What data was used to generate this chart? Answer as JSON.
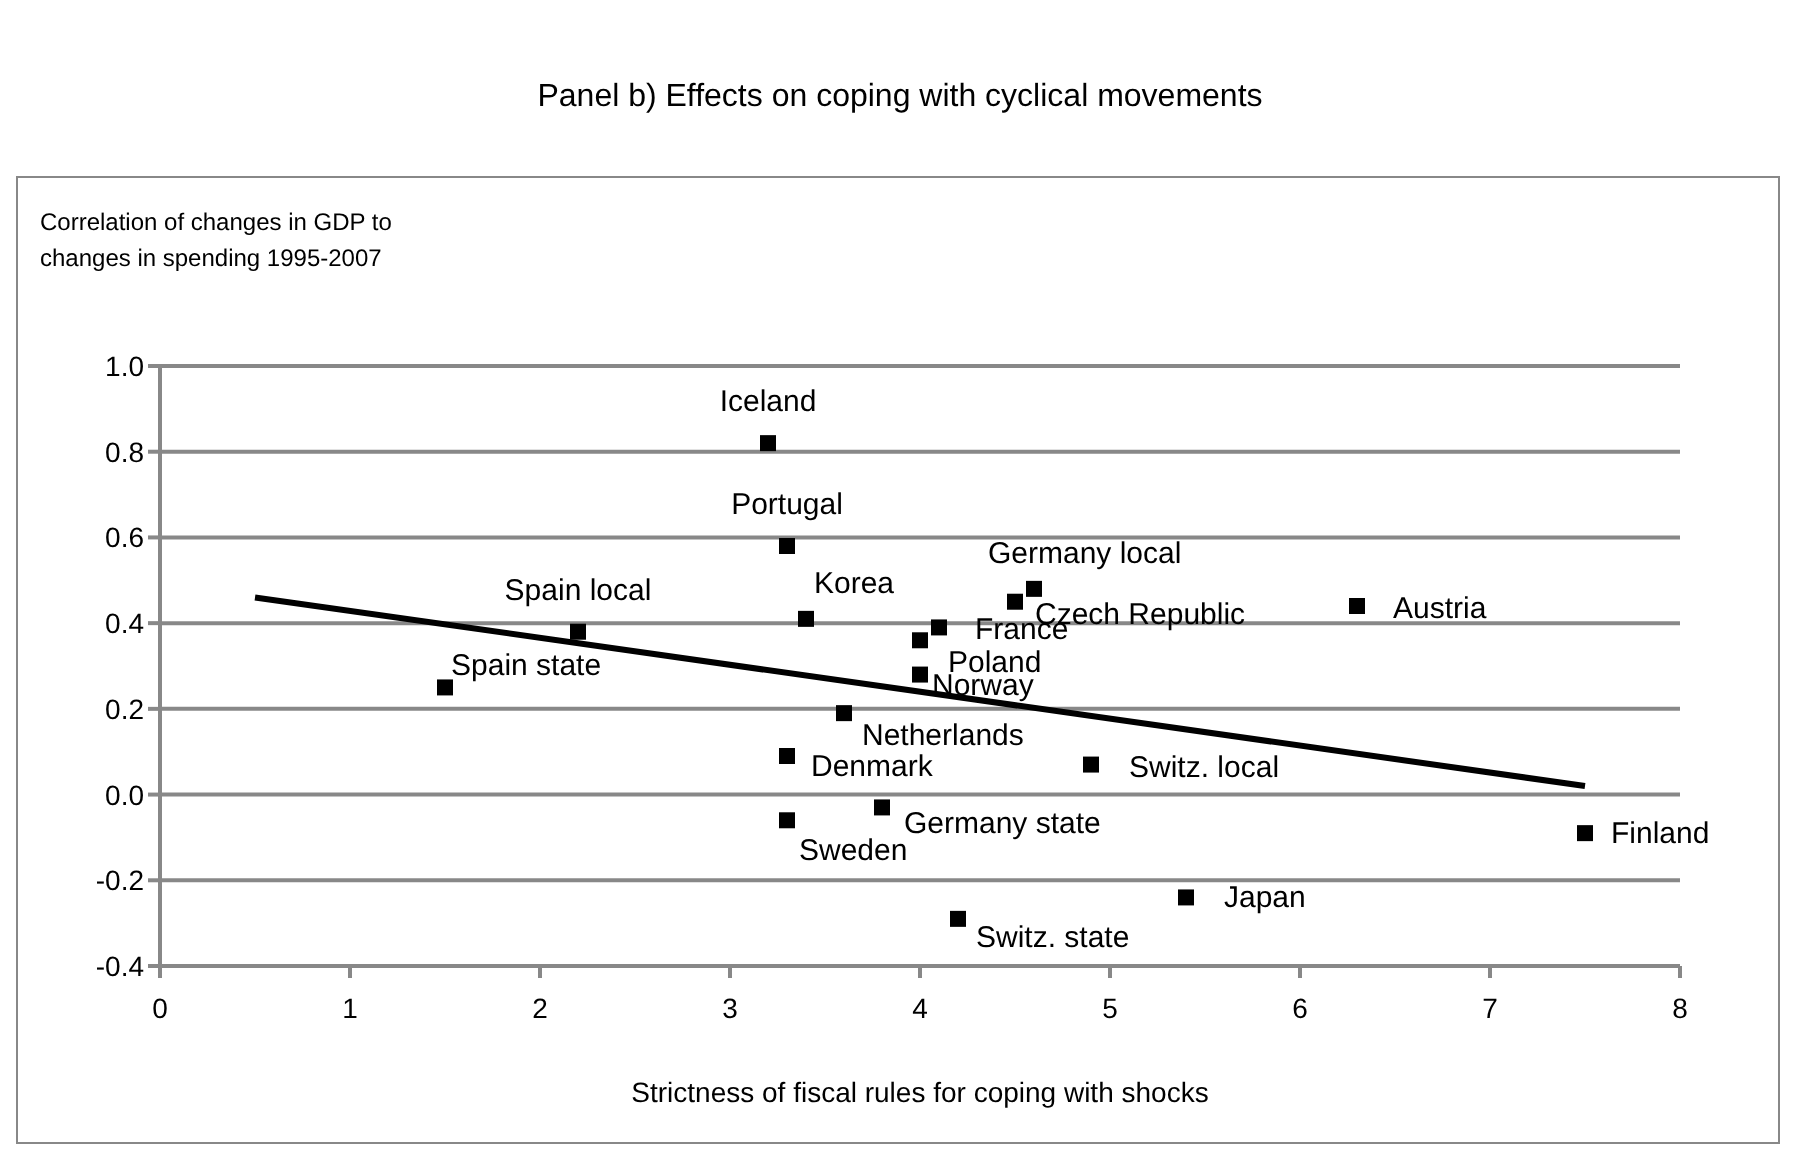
{
  "chart_data": {
    "type": "scatter",
    "title": "Panel b) Effects on coping with cyclical movements",
    "xlabel": "Strictness of fiscal rules  for coping with shocks",
    "ylabel": "Correlation of changes in GDP to changes in spending 1995-2007",
    "xlim": [
      0,
      8
    ],
    "xticks": [
      0,
      1,
      2,
      3,
      4,
      5,
      6,
      7,
      8
    ],
    "ylim": [
      -0.4,
      1
    ],
    "yticks": [
      {
        "value": -0.4,
        "label": "-0.4"
      },
      {
        "value": -0.2,
        "label": "-0.2"
      },
      {
        "value": 0,
        "label": "0.0"
      },
      {
        "value": 0.2,
        "label": "0.2"
      },
      {
        "value": 0.4,
        "label": "0.4"
      },
      {
        "value": 0.6,
        "label": "0.6"
      },
      {
        "value": 0.8,
        "label": "0.8"
      },
      {
        "value": 1,
        "label": "1.0"
      }
    ],
    "grid": "y",
    "series": [
      {
        "marker": "square",
        "color": "#000000",
        "x": [
          3.2,
          3.3,
          2.2,
          1.5,
          3.4,
          4.6,
          4.5,
          4.1,
          4.0,
          4.0,
          6.3,
          3.6,
          4.9,
          3.3,
          3.8,
          3.3,
          4.2,
          5.4,
          7.5
        ],
        "values": [
          0.82,
          0.58,
          0.38,
          0.25,
          0.41,
          0.48,
          0.45,
          0.39,
          0.36,
          0.28,
          0.44,
          0.19,
          0.07,
          0.09,
          -0.03,
          -0.06,
          -0.29,
          -0.24,
          -0.09
        ]
      },
      {
        "type": "line",
        "marker": "none",
        "color": "#000000",
        "x": [
          0.5,
          7.5
        ],
        "values": [
          0.46,
          0.02
        ]
      }
    ],
    "annotations": [
      {
        "text": "Iceland",
        "x": 3.2,
        "y": 0.82
      },
      {
        "text": "Portugal",
        "x": 3.3,
        "y": 0.58
      },
      {
        "text": "Spain local",
        "x": 2.2,
        "y": 0.38
      },
      {
        "text": "Spain state",
        "x": 1.5,
        "y": 0.25
      },
      {
        "text": "Korea",
        "x": 3.4,
        "y": 0.41
      },
      {
        "text": "Germany local",
        "x": 4.6,
        "y": 0.48
      },
      {
        "text": "Czech Republic",
        "x": 4.5,
        "y": 0.45
      },
      {
        "text": "France",
        "x": 4.1,
        "y": 0.39
      },
      {
        "text": "Poland",
        "x": 4.0,
        "y": 0.36
      },
      {
        "text": "Norway",
        "x": 4.0,
        "y": 0.28
      },
      {
        "text": "Austria",
        "x": 6.3,
        "y": 0.44
      },
      {
        "text": "Netherlands",
        "x": 3.6,
        "y": 0.19
      },
      {
        "text": "Switz. local",
        "x": 4.9,
        "y": 0.07
      },
      {
        "text": "Denmark",
        "x": 3.3,
        "y": 0.09
      },
      {
        "text": "Germany state",
        "x": 3.8,
        "y": -0.03
      },
      {
        "text": "Sweden",
        "x": 3.3,
        "y": -0.06
      },
      {
        "text": "Switz. state",
        "x": 4.2,
        "y": -0.29
      },
      {
        "text": "Japan",
        "x": 5.4,
        "y": -0.24
      },
      {
        "text": "Finland",
        "x": 7.5,
        "y": -0.09
      }
    ]
  }
}
